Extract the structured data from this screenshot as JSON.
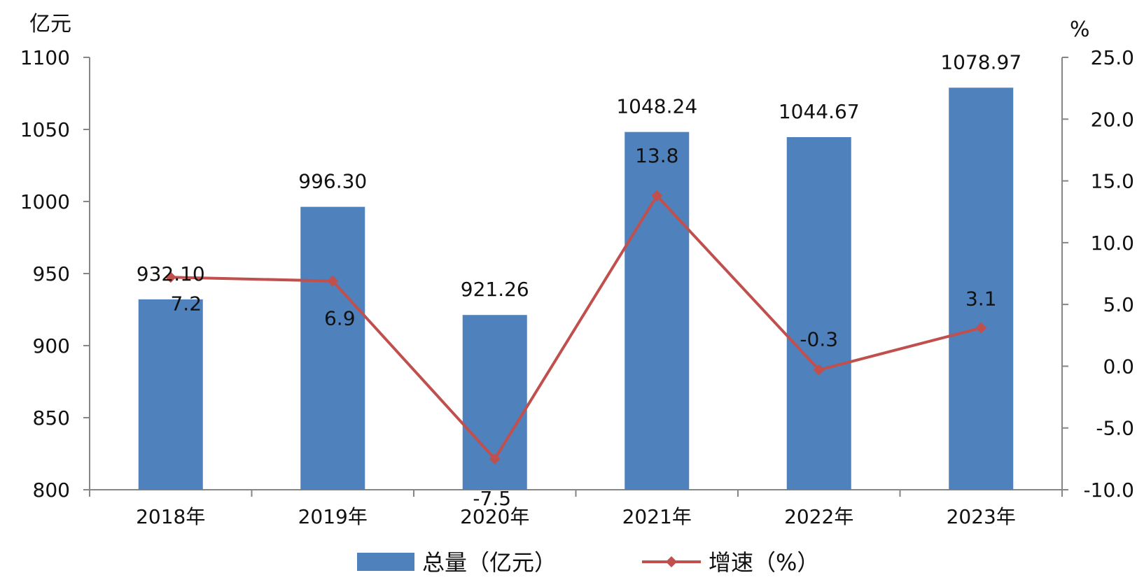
{
  "chart_data": {
    "type": "bar",
    "categories": [
      "2018年",
      "2019年",
      "2020年",
      "2021年",
      "2022年",
      "2023年"
    ],
    "series": [
      {
        "name": "总量（亿元）",
        "type": "bar",
        "axis": "left",
        "color": "#4f81bd",
        "values": [
          932.1,
          996.3,
          921.26,
          1048.24,
          1044.67,
          1078.97
        ],
        "labels": [
          "932.10",
          "996.30",
          "921.26",
          "1048.24",
          "1044.67",
          "1078.97"
        ]
      },
      {
        "name": "增速（%）",
        "type": "line",
        "axis": "right",
        "color": "#c0504d",
        "marker": "diamond",
        "values": [
          7.2,
          6.9,
          -7.5,
          13.8,
          -0.3,
          3.1
        ],
        "labels": [
          "7.2",
          "6.9",
          "-7.5",
          "13.8",
          "-0.3",
          "3.1"
        ]
      }
    ],
    "y_left": {
      "unit": "亿元",
      "ylim": [
        800,
        1100
      ],
      "ticks": [
        "1100",
        "1050",
        "1000",
        "950",
        "900",
        "850",
        "800"
      ]
    },
    "y_right": {
      "unit": "%",
      "ylim": [
        -10,
        25
      ],
      "ticks": [
        "25.0",
        "20.0",
        "15.0",
        "10.0",
        "5.0",
        "0.0",
        "-5.0",
        "-10.0"
      ]
    },
    "grid": false,
    "legend_position": "bottom"
  }
}
